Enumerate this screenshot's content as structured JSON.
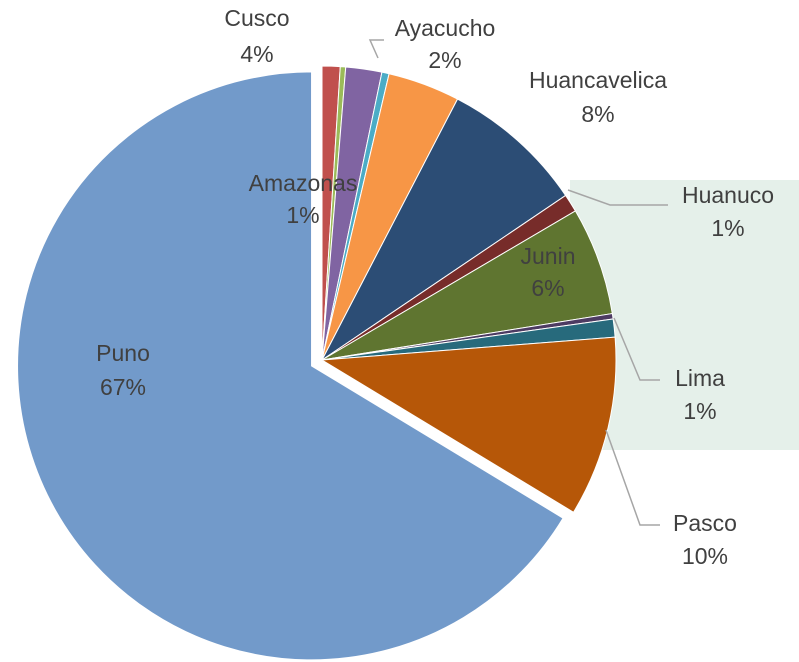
{
  "chart_data": {
    "type": "pie",
    "categories": [
      "Amazonas",
      null,
      "Ayacucho",
      null,
      "Cusco",
      "Huancavelica",
      "Huanuco",
      "Junin",
      null,
      "Lima",
      "Pasco",
      "Puno"
    ],
    "values": [
      1,
      0.3,
      2,
      0.4,
      4,
      8,
      1,
      6,
      0.3,
      1,
      10,
      67
    ],
    "value_labels": [
      "1%",
      null,
      "2%",
      null,
      "4%",
      "8%",
      "1%",
      "6%",
      null,
      "1%",
      "10%",
      "67%"
    ],
    "colors": [
      "#c0504d",
      "#9bbb59",
      "#8064a2",
      "#4bacc6",
      "#f79646",
      "#2c4d75",
      "#772c2a",
      "#5f7530",
      "#4d3b62",
      "#276a7c",
      "#b65708",
      "#729aca"
    ]
  }
}
